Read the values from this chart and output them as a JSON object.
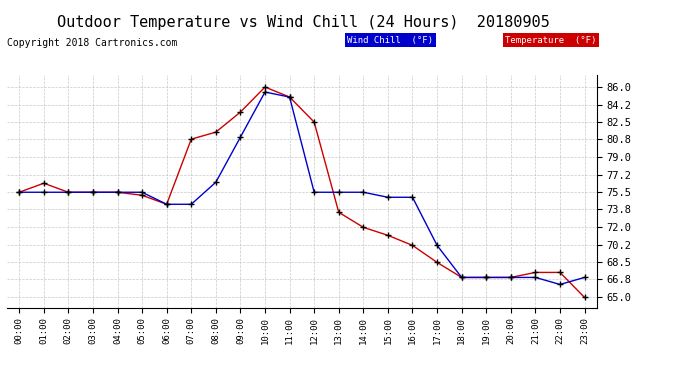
{
  "title": "Outdoor Temperature vs Wind Chill (24 Hours)  20180905",
  "copyright": "Copyright 2018 Cartronics.com",
  "legend_wind_chill": "Wind Chill  (°F)",
  "legend_temperature": "Temperature  (°F)",
  "x_labels": [
    "00:00",
    "01:00",
    "02:00",
    "03:00",
    "04:00",
    "05:00",
    "06:00",
    "07:00",
    "08:00",
    "09:00",
    "10:00",
    "11:00",
    "12:00",
    "13:00",
    "14:00",
    "15:00",
    "16:00",
    "17:00",
    "18:00",
    "19:00",
    "20:00",
    "21:00",
    "22:00",
    "23:00"
  ],
  "temperature": [
    75.5,
    76.4,
    75.5,
    75.5,
    75.5,
    75.2,
    74.3,
    80.8,
    81.5,
    83.5,
    86.0,
    85.0,
    82.5,
    73.5,
    72.0,
    71.2,
    70.2,
    68.5,
    67.0,
    67.0,
    67.0,
    67.5,
    67.5,
    65.0
  ],
  "wind_chill": [
    75.5,
    75.5,
    75.5,
    75.5,
    75.5,
    75.5,
    74.3,
    74.3,
    76.5,
    81.0,
    85.5,
    85.0,
    75.5,
    75.5,
    75.5,
    75.0,
    75.0,
    70.2,
    67.0,
    67.0,
    67.0,
    67.0,
    66.3,
    67.0
  ],
  "ylim_min": 64.0,
  "ylim_max": 87.2,
  "yticks": [
    65.0,
    66.8,
    68.5,
    70.2,
    72.0,
    73.8,
    75.5,
    77.2,
    79.0,
    80.8,
    82.5,
    84.2,
    86.0
  ],
  "background_color": "#ffffff",
  "grid_color": "#bbbbbb",
  "temp_color": "#cc0000",
  "wind_chill_color": "#0000cc",
  "title_fontsize": 11,
  "copyright_fontsize": 7,
  "legend_wind_bg": "#0000cc",
  "legend_temp_bg": "#cc0000"
}
